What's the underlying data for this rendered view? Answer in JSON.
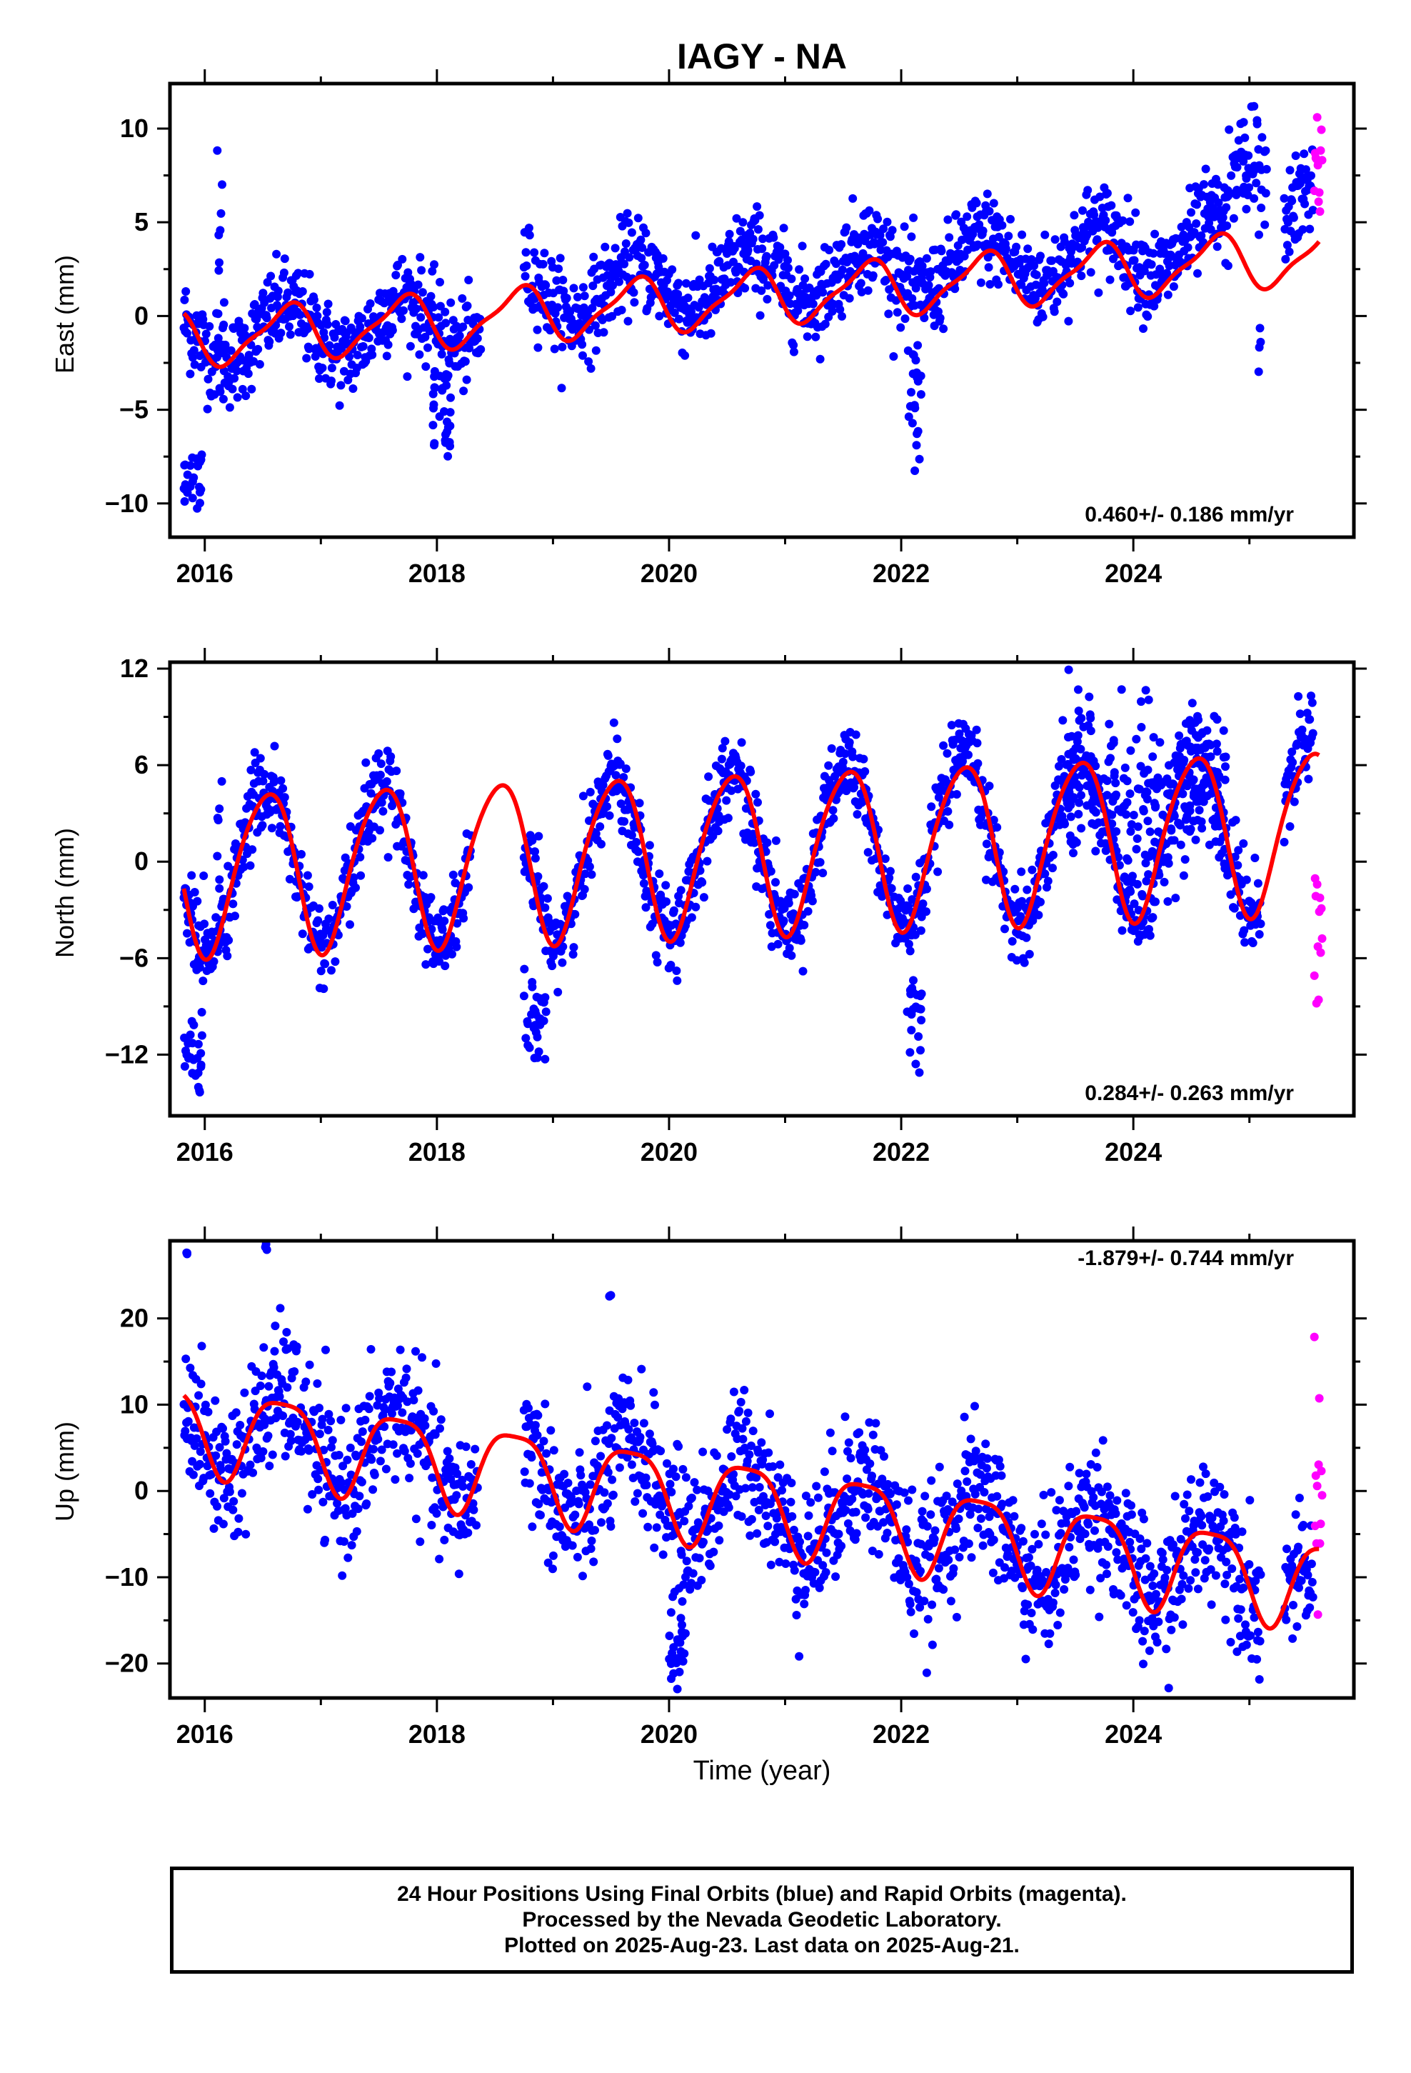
{
  "title": "IAGY - NA",
  "xlabel": "Time (year)",
  "colors": {
    "final": "#0000ff",
    "rapid": "#ff00ff",
    "model": "#ff0000",
    "frame": "#000000"
  },
  "footer": {
    "line1": "24 Hour Positions Using Final Orbits (blue) and Rapid Orbits (magenta).",
    "line2": "Processed by the Nevada Geodetic Laboratory.",
    "line3": "Plotted on 2025-Aug-23. Last data on 2025-Aug-21."
  },
  "chart_data": [
    {
      "type": "scatter",
      "ylabel": "East (mm)",
      "rate_label": "0.460+/- 0.186 mm/yr",
      "rate_position": "bottom-right",
      "xlim": [
        2015.7,
        2025.9
      ],
      "ylim": [
        -11.8,
        12.4
      ],
      "xticks": [
        2016,
        2018,
        2020,
        2022,
        2024
      ],
      "yticks": [
        -10,
        -5,
        0,
        5,
        10
      ],
      "ytick_labels": [
        "−10",
        "−5",
        "0",
        "5",
        "10"
      ],
      "series": [
        {
          "role": "final",
          "segments": [
            {
              "start": 2015.82,
              "end": 2018.38,
              "mean": -1.2,
              "trend": 0.46,
              "amp": 1.4,
              "phase": 0.45,
              "noise": 1.2
            },
            {
              "start": 2018.75,
              "end": 2024.82,
              "mean": -0.2,
              "trend": 0.46,
              "amp": 1.4,
              "phase": 0.45,
              "noise": 1.2
            },
            {
              "start": 2025.08,
              "end": 2025.1,
              "mean": -2.5,
              "trend": 0.0,
              "amp": 0.0,
              "phase": 0.0,
              "noise": 1.0
            },
            {
              "start": 2025.3,
              "end": 2025.55,
              "mean": 2.0,
              "trend": 0.46,
              "amp": 1.4,
              "phase": 0.45,
              "noise": 1.2
            }
          ]
        },
        {
          "role": "rapid",
          "segments": [
            {
              "start": 2025.56,
              "end": 2025.63,
              "mean": 8.0,
              "trend": 0.0,
              "amp": 0.0,
              "phase": 0.0,
              "noise": 1.5
            }
          ]
        }
      ],
      "outliers": [
        {
          "start": 2015.82,
          "end": 2015.98,
          "mean": -8.8,
          "noise": 1.0
        },
        {
          "start": 2016.1,
          "end": 2016.17,
          "mean": 3.5,
          "noise": 2.5
        },
        {
          "start": 2017.95,
          "end": 2018.12,
          "mean": -5.5,
          "noise": 1.6
        },
        {
          "start": 2022.05,
          "end": 2022.18,
          "mean": -5.0,
          "noise": 1.8
        },
        {
          "start": 2024.8,
          "end": 2025.15,
          "mean": 8.0,
          "noise": 1.4
        }
      ],
      "model": {
        "start": 2015.82,
        "end": 2025.6,
        "mean": -1.2,
        "trend": 0.46,
        "amp": 1.4,
        "phase": 0.45,
        "amp2": 0.4,
        "phase2": 0.2
      }
    },
    {
      "type": "scatter",
      "ylabel": "North (mm)",
      "rate_label": "0.284+/- 0.263 mm/yr",
      "rate_position": "bottom-right",
      "xlim": [
        2015.7,
        2025.9
      ],
      "ylim": [
        -15.8,
        12.4
      ],
      "xticks": [
        2016,
        2018,
        2020,
        2022,
        2024
      ],
      "yticks": [
        -12,
        -6,
        0,
        6,
        12
      ],
      "ytick_labels": [
        "−12",
        "−6",
        "0",
        "6",
        "12"
      ],
      "series": [
        {
          "role": "final",
          "segments": [
            {
              "start": 2015.82,
              "end": 2018.3,
              "mean": -0.6,
              "trend": 0.28,
              "amp": 5.0,
              "phase": 0.28,
              "noise": 1.3
            },
            {
              "start": 2018.75,
              "end": 2025.1,
              "mean": -0.6,
              "trend": 0.28,
              "amp": 5.0,
              "phase": 0.28,
              "noise": 1.3
            },
            {
              "start": 2025.3,
              "end": 2025.55,
              "mean": 0.5,
              "trend": 0.28,
              "amp": 5.0,
              "phase": 0.28,
              "noise": 1.3
            }
          ]
        },
        {
          "role": "rapid",
          "segments": [
            {
              "start": 2025.56,
              "end": 2025.63,
              "mean": -3.5,
              "trend": 0.0,
              "amp": 0.0,
              "phase": 0.0,
              "noise": 2.0
            }
          ]
        }
      ],
      "outliers": [
        {
          "start": 2015.82,
          "end": 2015.98,
          "mean": -12.5,
          "noise": 1.2
        },
        {
          "start": 2016.1,
          "end": 2016.15,
          "mean": 2.0,
          "noise": 4.0
        },
        {
          "start": 2018.75,
          "end": 2018.95,
          "mean": -10.0,
          "noise": 1.4
        },
        {
          "start": 2022.05,
          "end": 2022.18,
          "mean": -9.5,
          "noise": 2.0
        },
        {
          "start": 2023.4,
          "end": 2024.8,
          "mean": 4.5,
          "noise": 2.5
        }
      ],
      "model": {
        "start": 2015.82,
        "end": 2025.6,
        "mean": -0.6,
        "trend": 0.28,
        "amp": 5.0,
        "phase": 0.28,
        "amp2": 0.6,
        "phase2": 0.1
      }
    },
    {
      "type": "scatter",
      "ylabel": "Up (mm)",
      "rate_label": "-1.879+/- 0.744 mm/yr",
      "rate_position": "top-right",
      "xlim": [
        2015.7,
        2025.9
      ],
      "ylim": [
        -24,
        29
      ],
      "xticks": [
        2016,
        2018,
        2020,
        2022,
        2024
      ],
      "yticks": [
        -20,
        -10,
        0,
        10,
        20
      ],
      "ytick_labels": [
        "−20",
        "−10",
        "0",
        "10",
        "20"
      ],
      "series": [
        {
          "role": "final",
          "segments": [
            {
              "start": 2015.82,
              "end": 2018.35,
              "mean": 7.5,
              "trend": -1.88,
              "amp": 5.0,
              "phase": 0.42,
              "noise": 4.0
            },
            {
              "start": 2018.75,
              "end": 2025.1,
              "mean": 7.5,
              "trend": -1.88,
              "amp": 5.0,
              "phase": 0.42,
              "noise": 4.0
            },
            {
              "start": 2025.3,
              "end": 2025.55,
              "mean": -10.0,
              "trend": 0.0,
              "amp": 0.0,
              "phase": 0.0,
              "noise": 3.5
            }
          ]
        },
        {
          "role": "rapid",
          "segments": [
            {
              "start": 2025.56,
              "end": 2025.63,
              "mean": -2.0,
              "trend": 0.0,
              "amp": 0.0,
              "phase": 0.0,
              "noise": 8.0
            }
          ]
        }
      ],
      "outliers": [
        {
          "start": 2015.84,
          "end": 2015.86,
          "mean": 27.5,
          "noise": 0.2
        },
        {
          "start": 2016.52,
          "end": 2016.54,
          "mean": 28.3,
          "noise": 0.2
        },
        {
          "start": 2019.48,
          "end": 2019.5,
          "mean": 22.7,
          "noise": 0.2
        },
        {
          "start": 2020.0,
          "end": 2020.15,
          "mean": -18.5,
          "noise": 3.0
        }
      ],
      "model": {
        "start": 2015.82,
        "end": 2025.6,
        "mean": 7.5,
        "trend": -1.88,
        "amp": 5.0,
        "phase": 0.42,
        "amp2": 1.2,
        "phase2": 0.3
      }
    }
  ]
}
